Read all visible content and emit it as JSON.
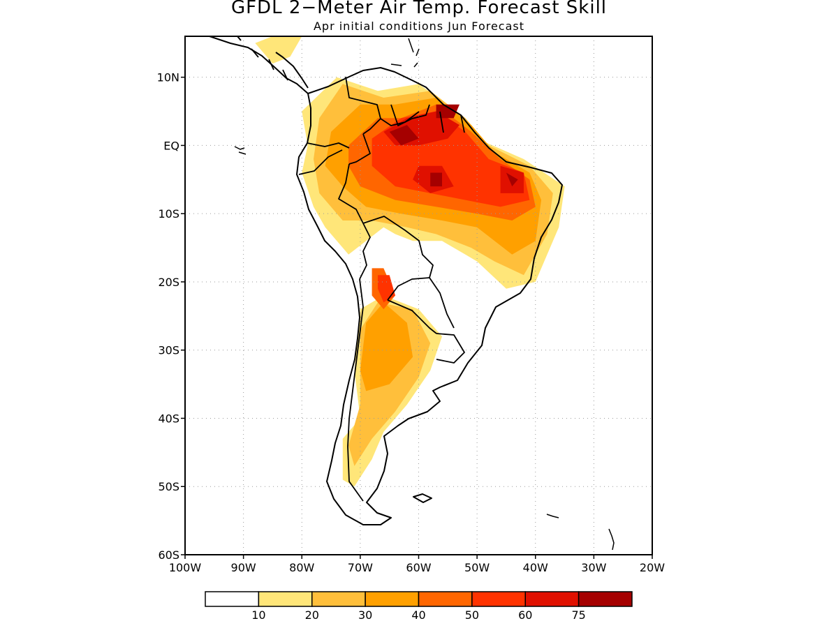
{
  "title": "GFDL 2−Meter Air Temp. Forecast Skill",
  "subtitle": "Apr initial conditions  Jun Forecast",
  "map": {
    "region": "South America",
    "lon_range": [
      -100,
      -20
    ],
    "lat_range": [
      -60,
      16
    ],
    "lat_ticks": [
      {
        "value": 10,
        "label": "10N"
      },
      {
        "value": 0,
        "label": "EQ"
      },
      {
        "value": -10,
        "label": "10S"
      },
      {
        "value": -20,
        "label": "20S"
      },
      {
        "value": -30,
        "label": "30S"
      },
      {
        "value": -40,
        "label": "40S"
      },
      {
        "value": -50,
        "label": "50S"
      },
      {
        "value": -60,
        "label": "60S"
      }
    ],
    "lon_ticks": [
      {
        "value": -100,
        "label": "100W"
      },
      {
        "value": -90,
        "label": "90W"
      },
      {
        "value": -80,
        "label": "80W"
      },
      {
        "value": -70,
        "label": "70W"
      },
      {
        "value": -60,
        "label": "60W"
      },
      {
        "value": -50,
        "label": "50W"
      },
      {
        "value": -40,
        "label": "40W"
      },
      {
        "value": -30,
        "label": "30W"
      },
      {
        "value": -20,
        "label": "20W"
      }
    ],
    "grid": true,
    "skill_regions": [
      {
        "level": 1,
        "points": [
          [
            -73,
            -43
          ],
          [
            -70,
            -40
          ],
          [
            -71,
            -33
          ],
          [
            -70,
            -24
          ],
          [
            -66,
            -22
          ],
          [
            -60,
            -24
          ],
          [
            -56,
            -28
          ],
          [
            -58,
            -33
          ],
          [
            -62,
            -38
          ],
          [
            -66,
            -42
          ],
          [
            -68,
            -46
          ],
          [
            -71,
            -50
          ],
          [
            -73,
            -49
          ],
          [
            -73,
            -45
          ]
        ]
      },
      {
        "level": 1,
        "points": [
          [
            -80,
            5
          ],
          [
            -74,
            10
          ],
          [
            -67,
            8
          ],
          [
            -60,
            9
          ],
          [
            -55,
            6
          ],
          [
            -50,
            1
          ],
          [
            -42,
            -2
          ],
          [
            -35,
            -6
          ],
          [
            -36,
            -12
          ],
          [
            -40,
            -20
          ],
          [
            -45,
            -21
          ],
          [
            -50,
            -17
          ],
          [
            -52,
            -16
          ],
          [
            -56,
            -14
          ],
          [
            -61,
            -14
          ],
          [
            -64,
            -13
          ],
          [
            -66,
            -12
          ],
          [
            -69,
            -14
          ],
          [
            -72,
            -16
          ],
          [
            -76,
            -12
          ],
          [
            -78,
            -9
          ],
          [
            -80,
            -4
          ],
          [
            -79,
            0
          ]
        ]
      },
      {
        "level": 1,
        "points": [
          [
            -88,
            15
          ],
          [
            -85,
            16
          ],
          [
            -80,
            16
          ],
          [
            -82,
            13
          ],
          [
            -85,
            12
          ]
        ]
      },
      {
        "level": 2,
        "points": [
          [
            -72,
            -44
          ],
          [
            -70,
            -38
          ],
          [
            -70,
            -27
          ],
          [
            -67,
            -23
          ],
          [
            -61,
            -24
          ],
          [
            -58,
            -29
          ],
          [
            -60,
            -34
          ],
          [
            -64,
            -39
          ],
          [
            -68,
            -43
          ],
          [
            -71,
            -47
          ]
        ]
      },
      {
        "level": 2,
        "points": [
          [
            -77,
            4
          ],
          [
            -73,
            9
          ],
          [
            -66,
            7
          ],
          [
            -58,
            8
          ],
          [
            -52,
            4
          ],
          [
            -48,
            0
          ],
          [
            -41,
            -3
          ],
          [
            -37,
            -7
          ],
          [
            -38,
            -13
          ],
          [
            -42,
            -19
          ],
          [
            -47,
            -17
          ],
          [
            -51,
            -15
          ],
          [
            -57,
            -13
          ],
          [
            -62,
            -12
          ],
          [
            -68,
            -11
          ],
          [
            -73,
            -11
          ],
          [
            -77,
            -7
          ],
          [
            -78,
            -2
          ]
        ]
      },
      {
        "level": 3,
        "points": [
          [
            -70,
            -33
          ],
          [
            -69,
            -26
          ],
          [
            -66,
            -23
          ],
          [
            -62,
            -26
          ],
          [
            -61,
            -31
          ],
          [
            -65,
            -35
          ],
          [
            -69,
            -36
          ]
        ]
      },
      {
        "level": 3,
        "points": [
          [
            -75,
            2
          ],
          [
            -70,
            6
          ],
          [
            -64,
            6
          ],
          [
            -57,
            7
          ],
          [
            -51,
            3
          ],
          [
            -47,
            -1
          ],
          [
            -41,
            -4
          ],
          [
            -39,
            -8
          ],
          [
            -40,
            -14
          ],
          [
            -44,
            -16
          ],
          [
            -50,
            -12
          ],
          [
            -56,
            -11
          ],
          [
            -63,
            -10
          ],
          [
            -69,
            -9
          ],
          [
            -73,
            -6
          ],
          [
            -76,
            -3
          ]
        ]
      },
      {
        "level": 4,
        "points": [
          [
            -72,
            0
          ],
          [
            -67,
            4
          ],
          [
            -63,
            4
          ],
          [
            -57,
            6
          ],
          [
            -51,
            2
          ],
          [
            -46,
            -2
          ],
          [
            -41,
            -5
          ],
          [
            -40,
            -9
          ],
          [
            -44,
            -11
          ],
          [
            -50,
            -10
          ],
          [
            -57,
            -9
          ],
          [
            -64,
            -8
          ],
          [
            -70,
            -6
          ],
          [
            -72,
            -3
          ]
        ]
      },
      {
        "level": 4,
        "points": [
          [
            -68,
            -18
          ],
          [
            -66,
            -18
          ],
          [
            -64,
            -22
          ],
          [
            -66,
            -24
          ],
          [
            -68,
            -22
          ]
        ]
      },
      {
        "level": 5,
        "points": [
          [
            -68,
            1
          ],
          [
            -63,
            4
          ],
          [
            -57,
            5
          ],
          [
            -52,
            2
          ],
          [
            -48,
            -2
          ],
          [
            -42,
            -4
          ],
          [
            -41,
            -8
          ],
          [
            -46,
            -9
          ],
          [
            -52,
            -8
          ],
          [
            -58,
            -7
          ],
          [
            -64,
            -6
          ],
          [
            -68,
            -3
          ]
        ]
      },
      {
        "level": 5,
        "points": [
          [
            -67,
            -19
          ],
          [
            -65,
            -19
          ],
          [
            -64,
            -22
          ],
          [
            -66,
            -23
          ],
          [
            -67,
            -21
          ]
        ]
      },
      {
        "level": 6,
        "points": [
          [
            -66,
            2
          ],
          [
            -62,
            4
          ],
          [
            -57,
            5
          ],
          [
            -53,
            3
          ],
          [
            -55,
            1
          ],
          [
            -60,
            0
          ],
          [
            -64,
            0
          ]
        ]
      },
      {
        "level": 6,
        "points": [
          [
            -60,
            -3
          ],
          [
            -56,
            -3
          ],
          [
            -54,
            -6
          ],
          [
            -58,
            -7
          ],
          [
            -61,
            -5
          ]
        ]
      },
      {
        "level": 6,
        "points": [
          [
            -46,
            -3
          ],
          [
            -42,
            -4
          ],
          [
            -42,
            -7
          ],
          [
            -46,
            -7
          ]
        ]
      },
      {
        "level": 7,
        "points": [
          [
            -65,
            2
          ],
          [
            -62,
            3
          ],
          [
            -60,
            1
          ],
          [
            -63,
            0
          ]
        ]
      },
      {
        "level": 7,
        "points": [
          [
            -58,
            -4
          ],
          [
            -56,
            -4
          ],
          [
            -56,
            -6
          ],
          [
            -58,
            -6
          ]
        ]
      },
      {
        "level": 7,
        "points": [
          [
            -45,
            -4
          ],
          [
            -43,
            -5
          ],
          [
            -44,
            -6
          ]
        ]
      },
      {
        "level": 7,
        "points": [
          [
            -57,
            6
          ],
          [
            -53,
            6
          ],
          [
            -54,
            4
          ],
          [
            -57,
            4
          ]
        ]
      }
    ]
  },
  "colorbar": {
    "colors": [
      "#ffffff",
      "#ffe679",
      "#ffbf3b",
      "#ffa000",
      "#ff6600",
      "#ff3300",
      "#e01000",
      "#a50000"
    ],
    "labels": [
      "10",
      "20",
      "30",
      "40",
      "50",
      "60",
      "75"
    ]
  }
}
